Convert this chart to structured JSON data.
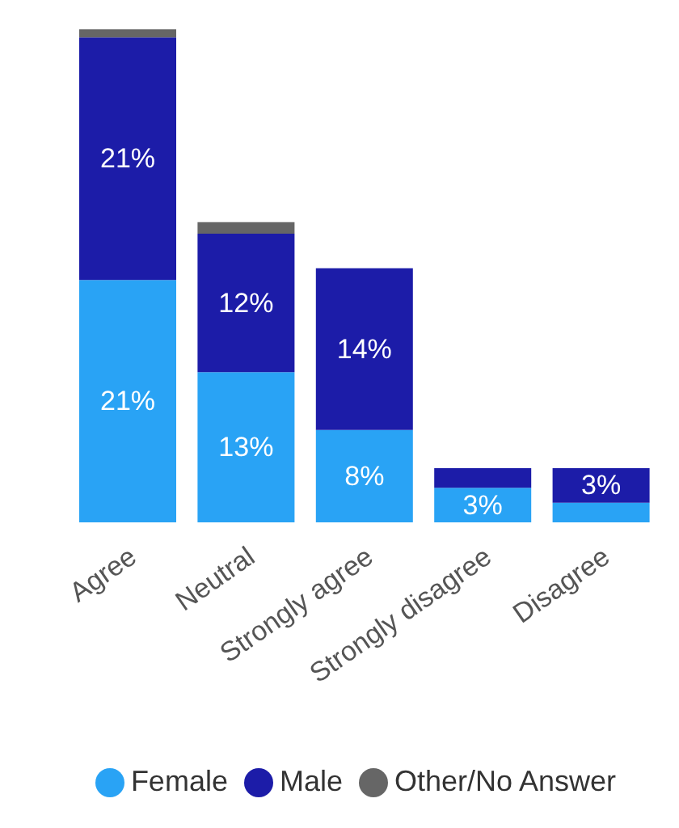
{
  "chart_data": {
    "type": "bar",
    "stacked": true,
    "categories": [
      "Agree",
      "Neutral",
      "Strongly agree",
      "Strongly disagree",
      "Disagree"
    ],
    "series": [
      {
        "name": "Female",
        "color": "#29a3f5",
        "values": [
          21,
          13,
          8,
          3,
          1.7
        ],
        "value_labels": [
          "21%",
          "13%",
          "8%",
          "3%",
          null
        ]
      },
      {
        "name": "Male",
        "color": "#1c1ca8",
        "values": [
          21,
          12,
          14,
          1.7,
          3
        ],
        "value_labels": [
          "21%",
          "12%",
          "14%",
          null,
          "3%"
        ]
      },
      {
        "name": "Other/No Answer",
        "color": "#666666",
        "values": [
          0.7,
          1,
          0,
          0,
          0
        ],
        "value_labels": [
          null,
          null,
          null,
          null,
          null
        ]
      }
    ],
    "ylim": [
      0,
      43
    ],
    "tick_labels": "x",
    "legend": "bottom"
  }
}
